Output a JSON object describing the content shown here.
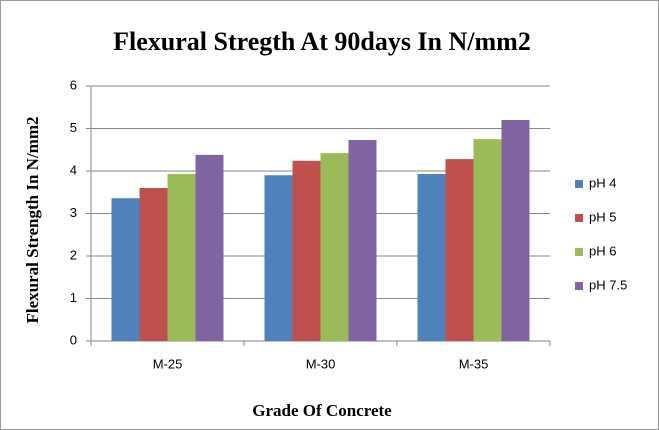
{
  "chart_data": {
    "type": "bar",
    "title": "Flexural Stregth At 90days In N/mm2",
    "x_label": "Grade Of Concrete",
    "y_label": "Flexural Strength In N/mm2",
    "categories": [
      "M-25",
      "M-30",
      "M-35"
    ],
    "series": [
      {
        "name": "pH 4",
        "color": "#4f81bd",
        "values": [
          3.36,
          3.9,
          3.93
        ]
      },
      {
        "name": "pH 5",
        "color": "#c0504d",
        "values": [
          3.6,
          4.24,
          4.28
        ]
      },
      {
        "name": "pH 6",
        "color": "#9bbb59",
        "values": [
          3.93,
          4.42,
          4.75
        ]
      },
      {
        "name": "pH 7.5",
        "color": "#8064a2",
        "values": [
          4.38,
          4.73,
          5.2
        ]
      }
    ],
    "ylim": [
      0,
      6
    ],
    "yticks": [
      0,
      1,
      2,
      3,
      4,
      5,
      6
    ],
    "grid": true,
    "legend": "right"
  }
}
